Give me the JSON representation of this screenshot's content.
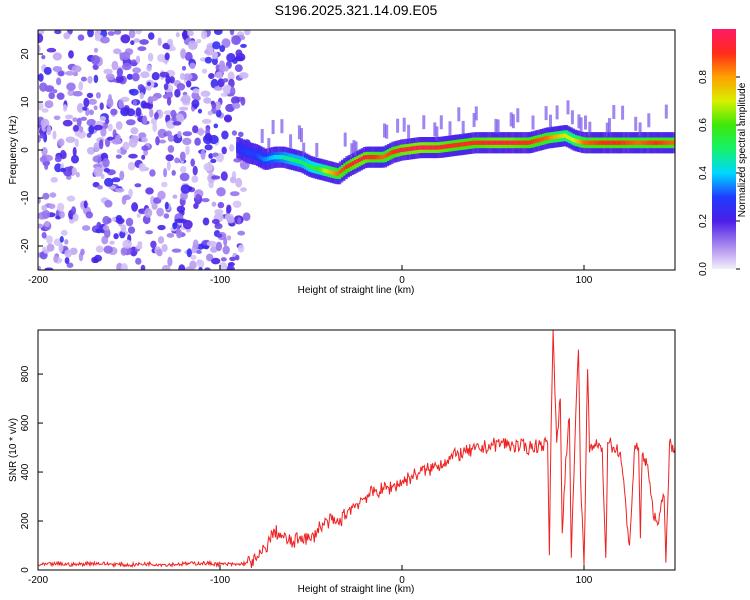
{
  "title": "S196.2025.321.14.09.E05",
  "chart_data": [
    {
      "type": "heatmap",
      "title": "S196.2025.321.14.09.E05",
      "xlabel": "Height of straight line (km)",
      "ylabel": "Frequency (Hz)",
      "xlim": [
        -200,
        150
      ],
      "ylim": [
        -25,
        25
      ],
      "xticks": [
        "-200",
        "-100",
        "0",
        "100"
      ],
      "yticks": [
        "-20",
        "-10",
        "0",
        "10",
        "20"
      ],
      "colorbar": {
        "label": "Normalized spectral amplitude",
        "range": [
          0,
          1
        ],
        "ticks": [
          "0.0",
          "0.2",
          "0.4",
          "0.6",
          "0.8"
        ]
      },
      "noise_region_x": [
        -200,
        -85
      ],
      "ridge": {
        "x": [
          -90,
          -85,
          -80,
          -75,
          -70,
          -65,
          -60,
          -55,
          -50,
          -45,
          -40,
          -35,
          -30,
          -25,
          -20,
          -15,
          -10,
          -5,
          0,
          10,
          20,
          30,
          40,
          50,
          60,
          70,
          80,
          90,
          95,
          100,
          110,
          120,
          130,
          140,
          150
        ],
        "freq": [
          0.5,
          -0.5,
          -1,
          -2,
          -1.5,
          -1.5,
          -2,
          -2.5,
          -3.5,
          -4,
          -4.5,
          -5,
          -3.5,
          -2.5,
          -1.5,
          -1.5,
          -1.5,
          -0.5,
          0,
          0.5,
          0.5,
          1,
          1.5,
          1.5,
          1.5,
          1.5,
          2.5,
          3,
          2,
          1.5,
          1.5,
          1.5,
          1.5,
          1.5,
          1.5
        ],
        "amplitude": [
          0.25,
          0.3,
          0.3,
          0.35,
          0.4,
          0.45,
          0.5,
          0.5,
          0.55,
          0.6,
          0.75,
          0.85,
          0.9,
          0.95,
          0.95,
          0.9,
          0.85,
          0.9,
          0.95,
          0.98,
          0.95,
          0.9,
          0.9,
          0.95,
          0.95,
          0.9,
          0.85,
          0.7,
          0.7,
          0.85,
          0.9,
          0.9,
          0.85,
          0.9,
          0.85
        ]
      }
    },
    {
      "type": "line",
      "xlabel": "Height of straight line (km)",
      "ylabel": "SNR (10 * v/v)",
      "xlim": [
        -200,
        150
      ],
      "ylim": [
        0,
        980
      ],
      "xticks": [
        "-200",
        "-100",
        "0",
        "100"
      ],
      "yticks": [
        "0",
        "200",
        "400",
        "600",
        "800"
      ],
      "color": "#ee2222",
      "series": [
        {
          "name": "SNR",
          "x": [
            -200,
            -190,
            -180,
            -170,
            -160,
            -150,
            -140,
            -130,
            -120,
            -110,
            -100,
            -90,
            -85,
            -80,
            -75,
            -70,
            -65,
            -60,
            -55,
            -50,
            -45,
            -40,
            -35,
            -30,
            -25,
            -20,
            -15,
            -10,
            -5,
            0,
            5,
            10,
            15,
            20,
            25,
            30,
            35,
            40,
            45,
            50,
            55,
            60,
            65,
            70,
            75,
            80,
            81,
            82,
            83,
            85,
            87,
            88,
            90,
            92,
            93,
            95,
            97,
            98,
            100,
            102,
            103,
            105,
            110,
            112,
            113,
            115,
            120,
            125,
            128,
            130,
            131,
            132,
            135,
            138,
            140,
            142,
            144,
            145,
            147,
            150
          ],
          "y": [
            20,
            25,
            22,
            28,
            24,
            20,
            26,
            22,
            25,
            28,
            24,
            22,
            30,
            40,
            90,
            160,
            130,
            110,
            140,
            120,
            180,
            200,
            190,
            240,
            270,
            300,
            320,
            330,
            340,
            360,
            380,
            400,
            410,
            430,
            450,
            470,
            480,
            490,
            500,
            510,
            520,
            510,
            505,
            500,
            510,
            520,
            60,
            600,
            980,
            520,
            700,
            150,
            460,
            620,
            50,
            520,
            900,
            400,
            20,
            820,
            480,
            510,
            500,
            50,
            520,
            510,
            480,
            100,
            510,
            500,
            130,
            470,
            430,
            220,
            200,
            240,
            300,
            30,
            520,
            500
          ]
        }
      ]
    }
  ]
}
